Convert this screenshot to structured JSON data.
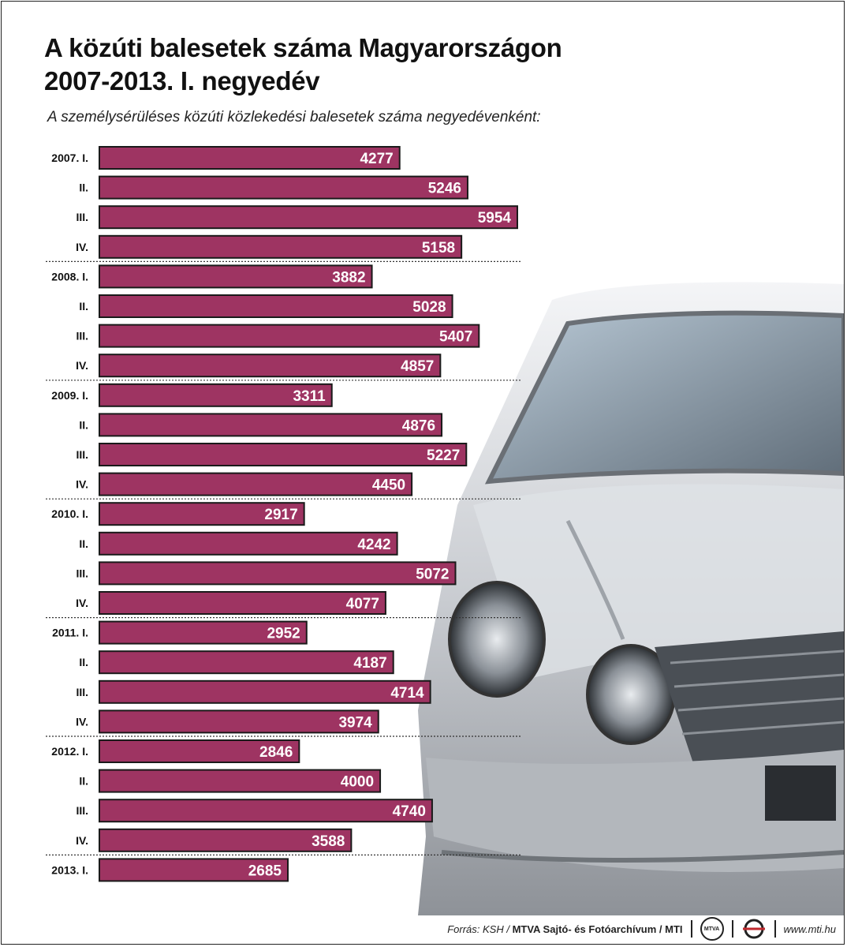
{
  "header": {
    "title_line1": "A közúti balesetek száma Magyarországon",
    "title_line2": "2007-2013. I. negyedév",
    "subtitle": "A személysérüléses közúti közlekedési balesetek száma negyedévenként:"
  },
  "chart_data": {
    "type": "bar",
    "orientation": "horizontal",
    "title": "A közúti balesetek száma Magyarországon 2007-2013. I. negyedév",
    "subtitle": "A személysérüléses közúti közlekedési balesetek száma negyedévenként:",
    "categories": [
      "2007. I.",
      "II.",
      "III.",
      "IV.",
      "2008. I.",
      "II.",
      "III.",
      "IV.",
      "2009. I.",
      "II.",
      "III.",
      "IV.",
      "2010. I.",
      "II.",
      "III.",
      "IV.",
      "2011. I.",
      "II.",
      "III.",
      "IV.",
      "2012. I.",
      "II.",
      "III.",
      "IV.",
      "2013. I."
    ],
    "values": [
      4277,
      5246,
      5954,
      5158,
      3882,
      5028,
      5407,
      4857,
      3311,
      4876,
      5227,
      4450,
      2917,
      4242,
      5072,
      4077,
      2952,
      4187,
      4714,
      3974,
      2846,
      4000,
      4740,
      3588,
      2685
    ],
    "xlim": [
      0,
      6000
    ],
    "group_size": 4,
    "bar_color": "#9e3462",
    "label_color": "#ffffff"
  },
  "footer": {
    "source_prefix": "Forrás: KSH / ",
    "source_bold": "MTVA Sajtó- és Fotóarchívum / MTI",
    "mtva_logo_text": "MTVA",
    "website": "www.mti.hu"
  },
  "colors": {
    "bar": "#9e3462",
    "bar_border": "#1a1a1a",
    "text": "#111111"
  }
}
